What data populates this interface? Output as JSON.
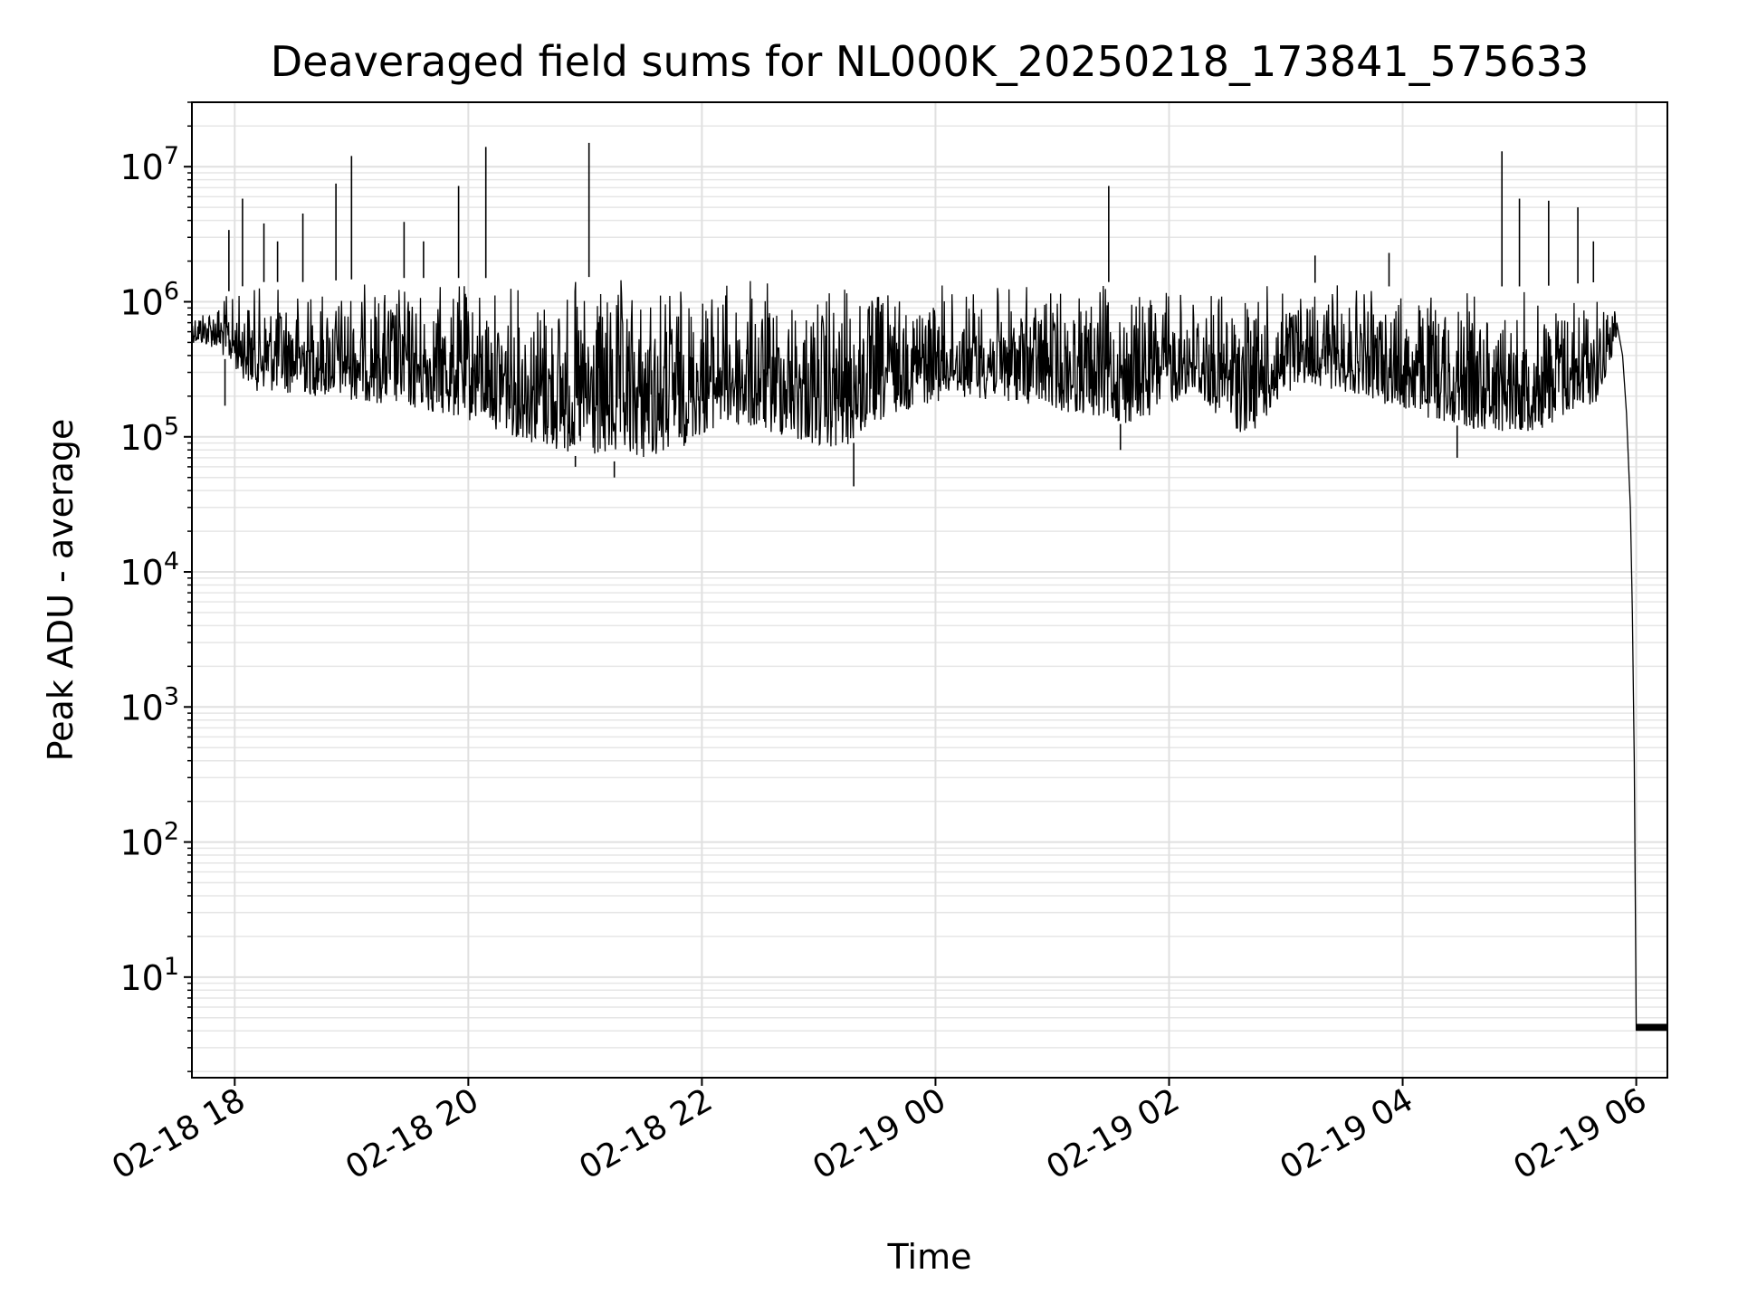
{
  "chart_data": {
    "type": "line",
    "title": "Deaveraged field sums for NL000K_20250218_173841_575633",
    "xlabel": "Time",
    "ylabel": "Peak ADU - average",
    "yscale": "log",
    "xlim": [
      "2025-02-18 17:38",
      "2025-02-19 06:16"
    ],
    "ylim": [
      1.8,
      30000000
    ],
    "grid": "both (major and minor)",
    "x_ticks": [
      {
        "t": "2025-02-18 18:00",
        "label": "02-18 18"
      },
      {
        "t": "2025-02-18 20:00",
        "label": "02-18 20"
      },
      {
        "t": "2025-02-18 22:00",
        "label": "02-18 22"
      },
      {
        "t": "2025-02-19 00:00",
        "label": "02-19 00"
      },
      {
        "t": "2025-02-19 02:00",
        "label": "02-19 02"
      },
      {
        "t": "2025-02-19 04:00",
        "label": "02-19 04"
      },
      {
        "t": "2025-02-19 06:00",
        "label": "02-19 06"
      }
    ],
    "y_ticks": [
      {
        "v": 10,
        "base": "10",
        "exp": "1"
      },
      {
        "v": 100,
        "base": "10",
        "exp": "2"
      },
      {
        "v": 1000,
        "base": "10",
        "exp": "3"
      },
      {
        "v": 10000,
        "base": "10",
        "exp": "4"
      },
      {
        "v": 100000,
        "base": "10",
        "exp": "5"
      },
      {
        "v": 1000000,
        "base": "10",
        "exp": "6"
      },
      {
        "v": 10000000,
        "base": "10",
        "exp": "7"
      }
    ],
    "series": [
      {
        "color": "#000000",
        "envelope": [
          {
            "t": "2025-02-18 17:38",
            "low": 500000,
            "high": 900000
          },
          {
            "t": "2025-02-18 17:50",
            "low": 450000,
            "high": 1100000
          },
          {
            "t": "2025-02-18 18:10",
            "low": 220000,
            "high": 1400000
          },
          {
            "t": "2025-02-18 18:40",
            "low": 200000,
            "high": 1400000
          },
          {
            "t": "2025-02-18 19:10",
            "low": 180000,
            "high": 1500000
          },
          {
            "t": "2025-02-18 19:40",
            "low": 150000,
            "high": 1500000
          },
          {
            "t": "2025-02-18 20:10",
            "low": 120000,
            "high": 1500000
          },
          {
            "t": "2025-02-18 20:40",
            "low": 80000,
            "high": 1600000
          },
          {
            "t": "2025-02-18 21:10",
            "low": 65000,
            "high": 1500000
          },
          {
            "t": "2025-02-18 21:40",
            "low": 70000,
            "high": 1600000
          },
          {
            "t": "2025-02-18 22:10",
            "low": 120000,
            "high": 1600000
          },
          {
            "t": "2025-02-18 22:40",
            "low": 100000,
            "high": 1500000
          },
          {
            "t": "2025-02-18 23:10",
            "low": 75000,
            "high": 1400000
          },
          {
            "t": "2025-02-18 23:40",
            "low": 150000,
            "high": 1400000
          },
          {
            "t": "2025-02-19 00:10",
            "low": 200000,
            "high": 1400000
          },
          {
            "t": "2025-02-19 00:40",
            "low": 180000,
            "high": 1400000
          },
          {
            "t": "2025-02-19 01:10",
            "low": 150000,
            "high": 1400000
          },
          {
            "t": "2025-02-19 01:40",
            "low": 120000,
            "high": 1400000
          },
          {
            "t": "2025-02-19 02:10",
            "low": 200000,
            "high": 1400000
          },
          {
            "t": "2025-02-19 02:40",
            "low": 100000,
            "high": 1400000
          },
          {
            "t": "2025-02-19 03:10",
            "low": 250000,
            "high": 1400000
          },
          {
            "t": "2025-02-19 03:40",
            "low": 200000,
            "high": 1300000
          },
          {
            "t": "2025-02-19 04:10",
            "low": 140000,
            "high": 1300000
          },
          {
            "t": "2025-02-19 04:40",
            "low": 110000,
            "high": 1300000
          },
          {
            "t": "2025-02-19 05:10",
            "low": 110000,
            "high": 1300000
          },
          {
            "t": "2025-02-19 05:40",
            "low": 180000,
            "high": 1400000
          },
          {
            "t": "2025-02-19 05:50",
            "low": 500000,
            "high": 1000000
          }
        ],
        "spikes": [
          {
            "t": "2025-02-18 17:57",
            "y": 3400000
          },
          {
            "t": "2025-02-18 18:04",
            "y": 5800000
          },
          {
            "t": "2025-02-18 18:15",
            "y": 3800000
          },
          {
            "t": "2025-02-18 18:22",
            "y": 2800000
          },
          {
            "t": "2025-02-18 18:35",
            "y": 4500000
          },
          {
            "t": "2025-02-18 18:52",
            "y": 7500000
          },
          {
            "t": "2025-02-18 19:00",
            "y": 12000000
          },
          {
            "t": "2025-02-18 19:27",
            "y": 3900000
          },
          {
            "t": "2025-02-18 19:37",
            "y": 2800000
          },
          {
            "t": "2025-02-18 19:55",
            "y": 7200000
          },
          {
            "t": "2025-02-18 20:09",
            "y": 14000000
          },
          {
            "t": "2025-02-18 21:02",
            "y": 15000000
          },
          {
            "t": "2025-02-19 01:29",
            "y": 7200000
          },
          {
            "t": "2025-02-19 03:15",
            "y": 2200000
          },
          {
            "t": "2025-02-19 03:53",
            "y": 2300000
          },
          {
            "t": "2025-02-19 04:51",
            "y": 13000000
          },
          {
            "t": "2025-02-19 05:00",
            "y": 5800000
          },
          {
            "t": "2025-02-19 05:15",
            "y": 5600000
          },
          {
            "t": "2025-02-19 05:30",
            "y": 5000000
          },
          {
            "t": "2025-02-19 05:38",
            "y": 2800000
          }
        ],
        "dips": [
          {
            "t": "2025-02-18 17:55",
            "y": 170000
          },
          {
            "t": "2025-02-18 20:55",
            "y": 60000
          },
          {
            "t": "2025-02-18 21:15",
            "y": 50000
          },
          {
            "t": "2025-02-18 23:18",
            "y": 43000
          },
          {
            "t": "2025-02-19 01:35",
            "y": 80000
          },
          {
            "t": "2025-02-19 04:28",
            "y": 70000
          }
        ],
        "falloff": [
          {
            "t": "2025-02-19 05:50",
            "y": 700000
          },
          {
            "t": "2025-02-19 05:53",
            "y": 400000
          },
          {
            "t": "2025-02-19 05:55",
            "y": 150000
          },
          {
            "t": "2025-02-19 05:57",
            "y": 30000
          },
          {
            "t": "2025-02-19 05:58",
            "y": 5000
          },
          {
            "t": "2025-02-19 05:59",
            "y": 400
          },
          {
            "t": "2025-02-19 06:00",
            "y": 4
          }
        ],
        "tail": {
          "t_start": "2025-02-19 06:00",
          "t_end": "2025-02-19 06:16",
          "low": 4,
          "high": 4.5
        }
      }
    ]
  }
}
